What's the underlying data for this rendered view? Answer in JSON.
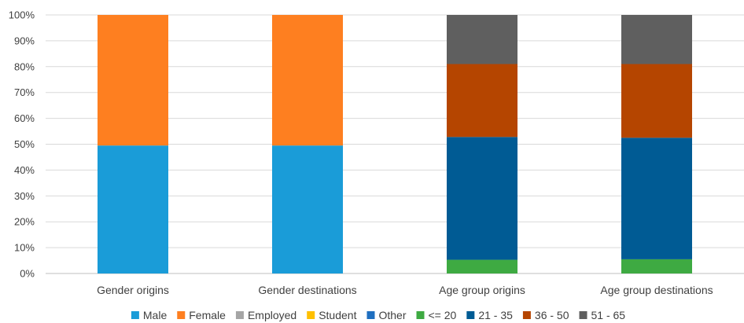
{
  "chart_data": {
    "type": "bar",
    "stacked": true,
    "percent": true,
    "title": "",
    "xlabel": "",
    "ylabel": "",
    "ylim": [
      0,
      100
    ],
    "y_ticks": [
      "0%",
      "10%",
      "20%",
      "30%",
      "40%",
      "50%",
      "60%",
      "70%",
      "80%",
      "90%",
      "100%"
    ],
    "grid": true,
    "legend_position": "bottom",
    "categories": [
      "Gender origins",
      "Gender destinations",
      "Age group origins",
      "Age group destinations"
    ],
    "series": [
      {
        "name": "Male",
        "color": "#1a9cd8",
        "values": [
          49.5,
          49.5,
          0,
          0
        ]
      },
      {
        "name": "Female",
        "color": "#fe7f20",
        "values": [
          50.5,
          50.5,
          0,
          0
        ]
      },
      {
        "name": "Employed",
        "color": "#a5a5a5",
        "values": [
          0,
          0,
          0,
          0
        ]
      },
      {
        "name": "Student",
        "color": "#ffc000",
        "values": [
          0,
          0,
          0,
          0
        ]
      },
      {
        "name": "Other",
        "color": "#1f6fc0",
        "values": [
          0,
          0,
          0,
          0
        ]
      },
      {
        "name": "<= 20",
        "color": "#3eaa42",
        "values": [
          0,
          0,
          5.3,
          5.5
        ]
      },
      {
        "name": "21 - 35",
        "color": "#005b94",
        "values": [
          0,
          0,
          47.5,
          47.0
        ]
      },
      {
        "name": "36 - 50",
        "color": "#b54500",
        "values": [
          0,
          0,
          28.2,
          28.5
        ]
      },
      {
        "name": "51 - 65",
        "color": "#5f5f5f",
        "values": [
          0,
          0,
          19.0,
          19.0
        ]
      }
    ]
  }
}
